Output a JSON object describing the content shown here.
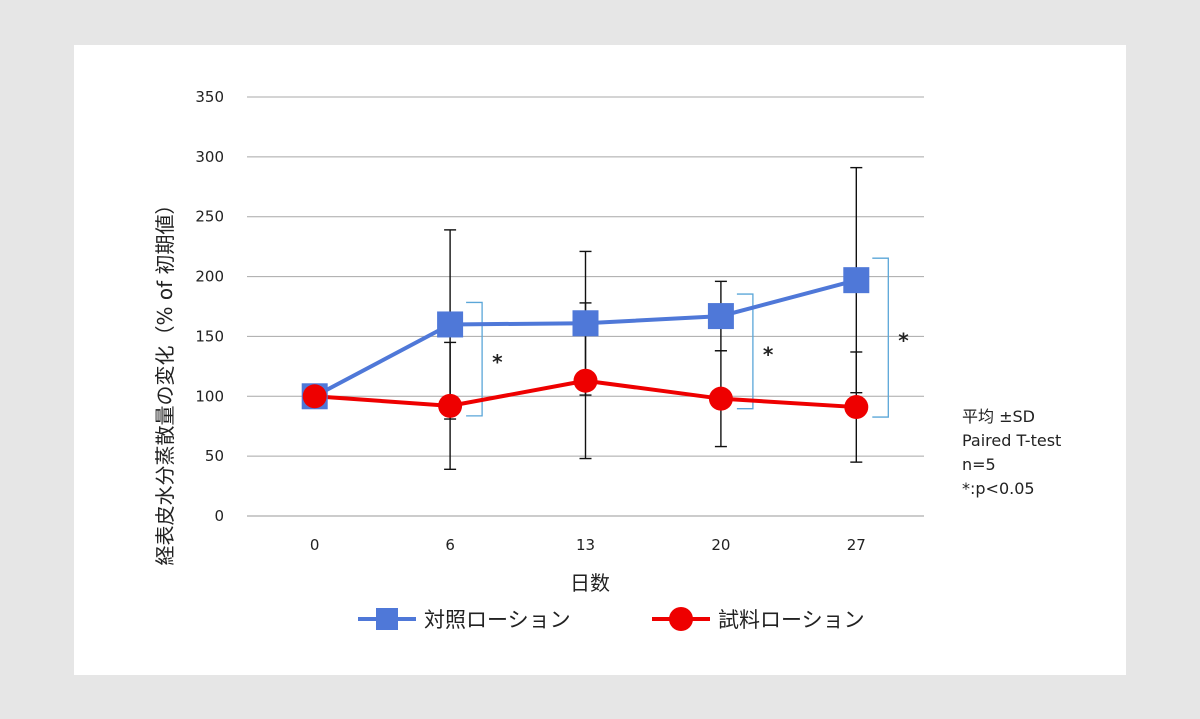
{
  "chart_data": {
    "type": "line",
    "x": [
      0,
      6,
      13,
      20,
      27
    ],
    "xlabel": "日数",
    "ylabel": "経表皮水分蒸散量の変化（% of 初期値）",
    "ylim": [
      0,
      350
    ],
    "yticks": [
      0,
      50,
      100,
      150,
      200,
      250,
      300,
      350
    ],
    "grid": true,
    "legend_position": "bottom",
    "series": [
      {
        "name": "対照ローション",
        "marker": "square",
        "color": "#4f78d8",
        "values": [
          100,
          160,
          161,
          167,
          197
        ],
        "error": [
          0,
          79,
          60,
          29,
          94
        ]
      },
      {
        "name": "試料ローション",
        "marker": "circle",
        "color": "#ee0000",
        "values": [
          100,
          92,
          113,
          98,
          91
        ],
        "error": [
          0,
          53,
          65,
          40,
          46
        ]
      }
    ],
    "significance": [
      {
        "x": 6,
        "label": "*"
      },
      {
        "x": 20,
        "label": "*"
      },
      {
        "x": 27,
        "label": "*"
      }
    ],
    "bracket_color": "#5aa6d8"
  },
  "notes": [
    "平均 ±SD",
    "Paired T-test",
    "n=5",
    "*:p<0.05"
  ]
}
